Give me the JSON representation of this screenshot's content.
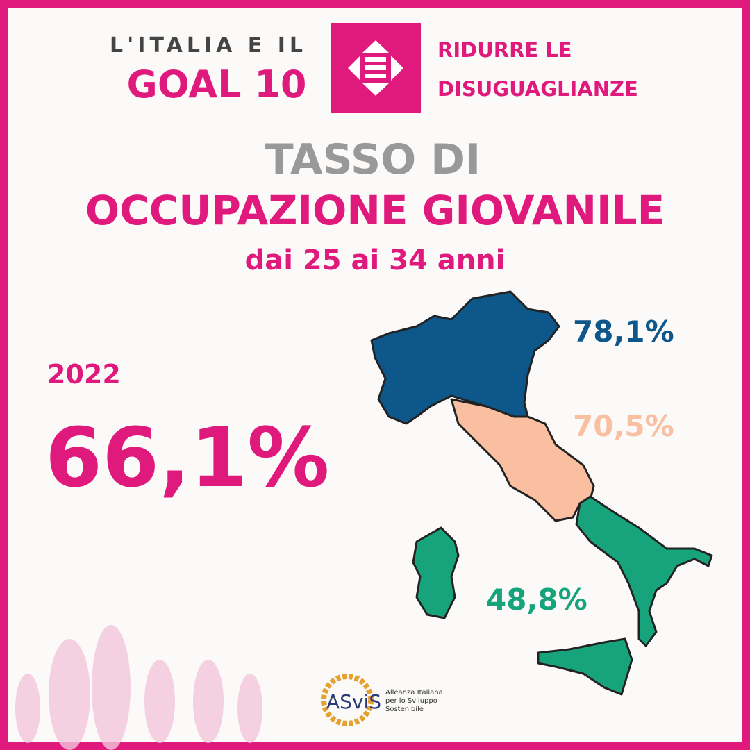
{
  "header": {
    "kicker": "L'ITALIA E IL",
    "goal": "GOAL 10",
    "goal_name": [
      "RIDURRE LE",
      "DISUGUAGLIANZE"
    ]
  },
  "title": {
    "line1": "TASSO DI",
    "line2": "OCCUPAZIONE GIOVANILE",
    "subtitle": "dai 25 ai 34 anni"
  },
  "national": {
    "year": "2022",
    "value": "66,1%"
  },
  "regions": [
    {
      "label": "78,1%",
      "color": "#0d578a"
    },
    {
      "label": "70,5%",
      "color": "#f9bfa0"
    },
    {
      "label": "48,8%",
      "color": "#17a47c"
    }
  ],
  "logo": {
    "name": "ASviS",
    "text": [
      "Alleanza Italiana",
      "per lo Sviluppo",
      "Sostenibile"
    ]
  }
}
